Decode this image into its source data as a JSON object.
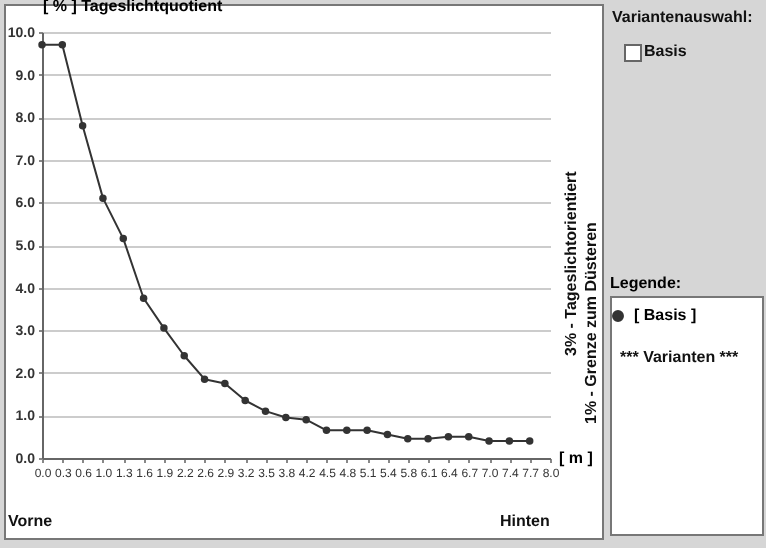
{
  "chart_data": {
    "type": "line",
    "ylabel": "[ % ] Tageslichtquotient",
    "xlabel": "[ m ]",
    "legend_title": "Legende:",
    "legend": "right",
    "marker": "circle",
    "line_style": "solid",
    "grid": "y",
    "x": [
      0,
      0.32,
      0.64,
      0.96,
      1.28,
      1.6,
      1.92,
      2.24,
      2.56,
      2.88,
      3.2,
      3.52,
      3.84,
      4.16,
      4.48,
      4.8,
      5.12,
      5.44,
      5.76,
      6.08,
      6.4,
      6.72,
      7.04,
      7.36,
      7.68
    ],
    "series": [
      {
        "name": "[ Basis ]",
        "color": "#333333",
        "values": [
          9.7,
          9.7,
          7.8,
          6.1,
          5.15,
          3.75,
          3.05,
          2.4,
          1.85,
          1.75,
          1.35,
          1.1,
          0.95,
          0.9,
          0.65,
          0.65,
          0.65,
          0.55,
          0.45,
          0.45,
          0.5,
          0.5,
          0.4,
          0.4,
          0.4
        ]
      }
    ],
    "xlim": [
      0,
      8
    ],
    "xticks": [
      {
        "value": 0,
        "label": "0.0"
      },
      {
        "value": 0.32,
        "label": "0.3"
      },
      {
        "value": 0.64,
        "label": "0.6"
      },
      {
        "value": 0.96,
        "label": "1.0"
      },
      {
        "value": 1.28,
        "label": "1.3"
      },
      {
        "value": 1.6,
        "label": "1.6"
      },
      {
        "value": 1.92,
        "label": "1.9"
      },
      {
        "value": 2.24,
        "label": "2.2"
      },
      {
        "value": 2.56,
        "label": "2.6"
      },
      {
        "value": 2.88,
        "label": "2.9"
      },
      {
        "value": 3.2,
        "label": "3.2"
      },
      {
        "value": 3.52,
        "label": "3.5"
      },
      {
        "value": 3.84,
        "label": "3.8"
      },
      {
        "value": 4.16,
        "label": "4.2"
      },
      {
        "value": 4.48,
        "label": "4.5"
      },
      {
        "value": 4.8,
        "label": "4.8"
      },
      {
        "value": 5.12,
        "label": "5.1"
      },
      {
        "value": 5.44,
        "label": "5.4"
      },
      {
        "value": 5.76,
        "label": "5.8"
      },
      {
        "value": 6.08,
        "label": "6.1"
      },
      {
        "value": 6.4,
        "label": "6.4"
      },
      {
        "value": 6.72,
        "label": "6.7"
      },
      {
        "value": 7.04,
        "label": "7.0"
      },
      {
        "value": 7.36,
        "label": "7.4"
      },
      {
        "value": 7.68,
        "label": "7.7"
      },
      {
        "value": 8,
        "label": "8.0"
      }
    ],
    "ylim": [
      0,
      10
    ],
    "yticks": [
      {
        "value": 0,
        "label": "0.0"
      },
      {
        "value": 1,
        "label": "1.0"
      },
      {
        "value": 2,
        "label": "2.0"
      },
      {
        "value": 3,
        "label": "3.0"
      },
      {
        "value": 4,
        "label": "4.0"
      },
      {
        "value": 5,
        "label": "5.0"
      },
      {
        "value": 6,
        "label": "6.0"
      },
      {
        "value": 7,
        "label": "7.0"
      },
      {
        "value": 8,
        "label": "8.0"
      },
      {
        "value": 9,
        "label": "9.0"
      },
      {
        "value": 10,
        "label": "10.0"
      }
    ],
    "annotations": [
      "Vorne",
      "Hinten",
      "3% - Tageslichtorientiert",
      "1% - Grenze zum Düsteren",
      "Variantenauswahl:",
      "Basis",
      "*** Varianten ***"
    ]
  }
}
